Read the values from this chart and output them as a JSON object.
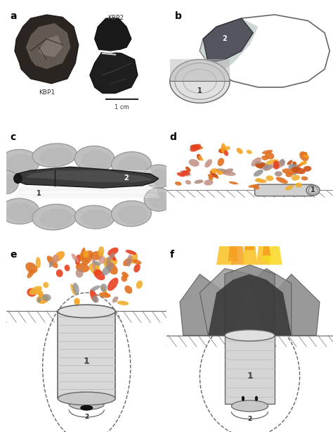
{
  "bg_color": "#ffffff",
  "panel_labels": [
    "a",
    "b",
    "c",
    "d",
    "e",
    "f"
  ],
  "panel_label_fontsize": 10,
  "panel_label_weight": "bold",
  "kbp1_label": "KBP1",
  "kbp2_label": "KBP2",
  "scale_label": "1 cm",
  "fire_orange": "#f5a020",
  "fire_red": "#e84020",
  "fire_yellow": "#f8d820",
  "fire_pink": "#e8a090",
  "ember_gray": "#a09090",
  "ember_pink": "#d09080",
  "stone_light": "#c8c8c8",
  "stone_med": "#b0b0b0",
  "stone_dark": "#909090",
  "dark_gray": "#555555",
  "med_gray": "#888888",
  "light_gray": "#d0d0d0",
  "very_light_gray": "#e8e8e8",
  "bark_dark": "#444444",
  "bark_light": "#aaaaaa",
  "cyl_gray": "#d0d0d0",
  "tar_black": "#111111"
}
